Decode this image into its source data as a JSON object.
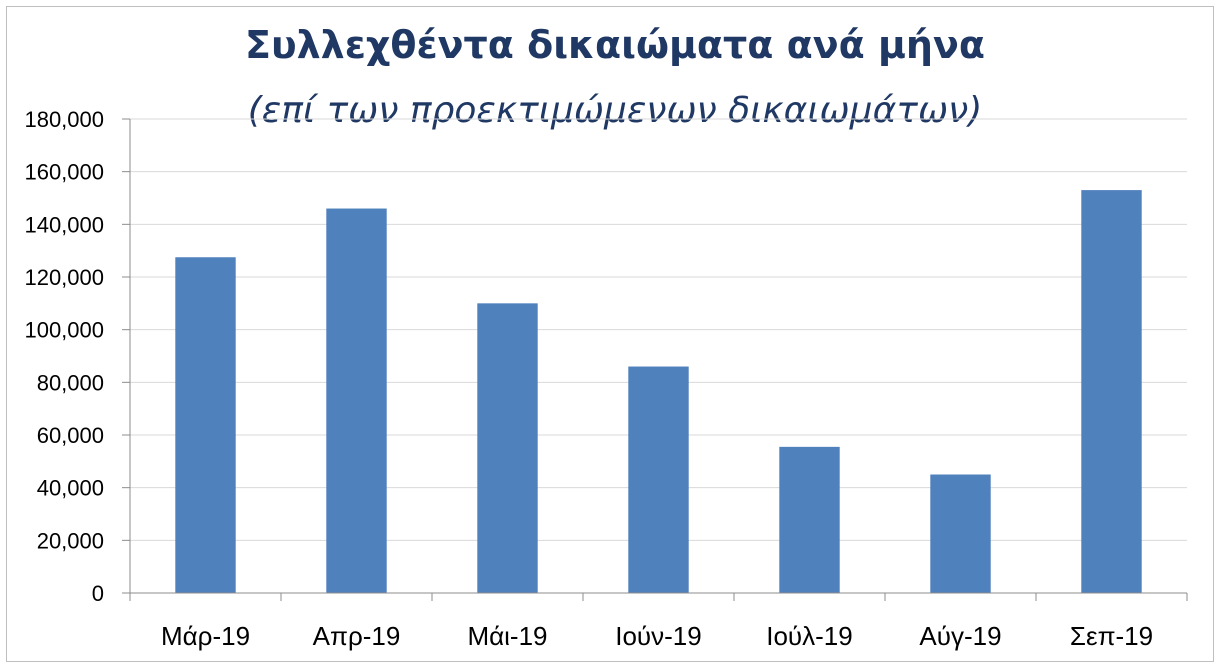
{
  "chart_data": {
    "type": "bar",
    "title": "Συλλεχθέντα δικαιώματα ανά μήνα",
    "subtitle": "(επί των προεκτιμώμενων δικαιωμάτων)",
    "categories": [
      "Μάρ-19",
      "Απρ-19",
      "Μάι-19",
      "Ιούν-19",
      "Ιούλ-19",
      "Αύγ-19",
      "Σεπ-19"
    ],
    "values": [
      127500,
      146000,
      110000,
      86000,
      55500,
      45000,
      153000
    ],
    "ylim": [
      0,
      180000
    ],
    "yticks": [
      "0",
      "20,000",
      "40,000",
      "60,000",
      "80,000",
      "100,000",
      "120,000",
      "140,000",
      "160,000",
      "180,000"
    ],
    "xlabel": "",
    "ylabel": "",
    "grid": true,
    "legend": "none",
    "bar_color": "#4f81bd"
  }
}
